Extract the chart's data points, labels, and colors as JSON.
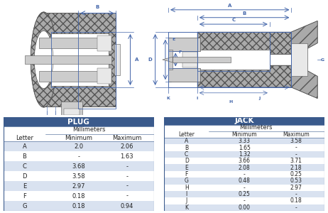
{
  "header_color": "#3a5a8c",
  "header_text_color": "#ffffff",
  "row_alt_color": "#d9e2f0",
  "row_base_color": "#ffffff",
  "plug_title": "PLUG",
  "jack_title": "JACK",
  "plug_rows": [
    [
      "A",
      "2.0",
      "2.06"
    ],
    [
      "B",
      "-",
      "1.63"
    ],
    [
      "C",
      "3.68",
      "-"
    ],
    [
      "D",
      "3.58",
      "-"
    ],
    [
      "E",
      "2.97",
      "-"
    ],
    [
      "F",
      "0.18",
      "-"
    ],
    [
      "G",
      "0.18",
      "0.94"
    ]
  ],
  "jack_rows": [
    [
      "A",
      "3.33",
      "3.58"
    ],
    [
      "B",
      "1.65",
      "-"
    ],
    [
      "C",
      "1.32",
      "-"
    ],
    [
      "D",
      "3.66",
      "3.71"
    ],
    [
      "E",
      "2.08",
      "2.18"
    ],
    [
      "F",
      "-",
      "0.25"
    ],
    [
      "G",
      "0.48",
      "0.53"
    ],
    [
      "H",
      "-",
      "2.97"
    ],
    [
      "I",
      "0.25",
      "-"
    ],
    [
      "J",
      "-",
      "0.18"
    ],
    [
      "K",
      "0.00",
      "-"
    ]
  ],
  "border_color": "#3a5a8c",
  "text_color": "#222222",
  "diag_blue": "#4466aa",
  "gray_dark": "#888888",
  "gray_med": "#aaaaaa",
  "gray_light": "#cccccc",
  "gray_xlight": "#e8e8e8",
  "white": "#ffffff",
  "line_color": "#555555"
}
